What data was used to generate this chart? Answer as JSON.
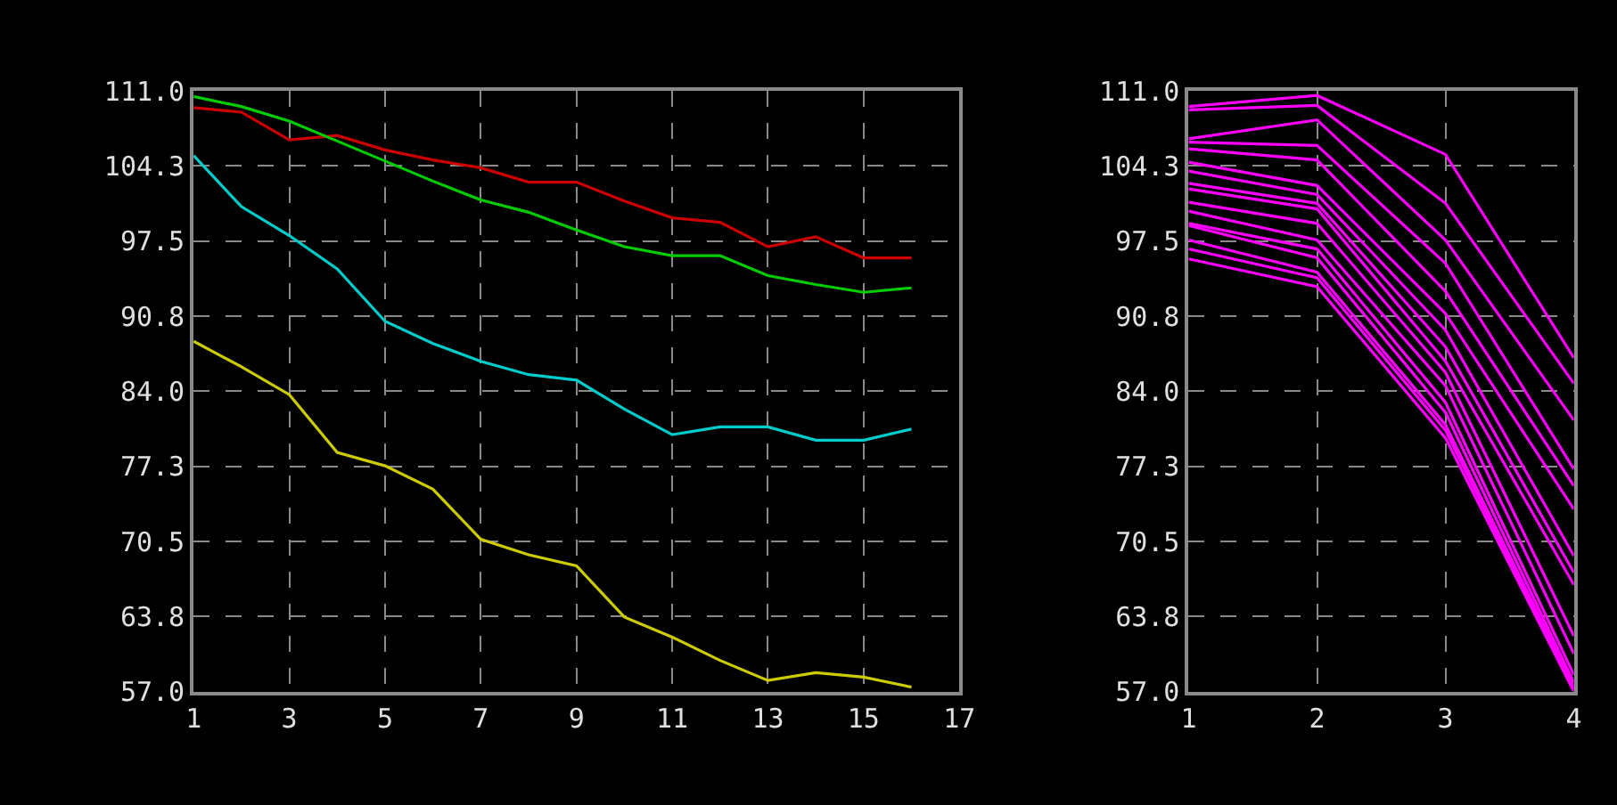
{
  "chart_data": [
    {
      "type": "line",
      "x": [
        1,
        2,
        3,
        4,
        5,
        6,
        7,
        8,
        9,
        10,
        11,
        12,
        13,
        14,
        15,
        16
      ],
      "xlim": [
        1,
        17
      ],
      "xticks": [
        1,
        3,
        5,
        7,
        9,
        11,
        13,
        15,
        17
      ],
      "ylim": [
        57,
        111
      ],
      "yticks": [
        {
          "value": 57,
          "label": "57.0"
        },
        {
          "value": 63.75,
          "label": "63.8"
        },
        {
          "value": 70.5,
          "label": "70.5"
        },
        {
          "value": 77.25,
          "label": "77.3"
        },
        {
          "value": 84,
          "label": "84.0"
        },
        {
          "value": 90.75,
          "label": "90.8"
        },
        {
          "value": 97.5,
          "label": "97.5"
        },
        {
          "value": 104.25,
          "label": "104.3"
        },
        {
          "value": 111,
          "label": "111.0"
        }
      ],
      "grid": true,
      "marker": "none",
      "line_style": "solid",
      "series": [
        {
          "color": "#cc0000",
          "values": [
            109.5,
            109.1,
            106.6,
            107.0,
            105.7,
            104.8,
            104.1,
            102.8,
            102.8,
            101.1,
            99.6,
            99.2,
            97.0,
            97.9,
            96.0,
            96.0
          ]
        },
        {
          "color": "#00cc00",
          "values": [
            110.5,
            109.6,
            108.3,
            106.5,
            104.7,
            102.9,
            101.2,
            100.1,
            98.5,
            97.0,
            96.2,
            96.2,
            94.4,
            93.6,
            92.9,
            93.3
          ]
        },
        {
          "color": "#00cccc",
          "values": [
            105.2,
            100.6,
            98.0,
            95.0,
            90.3,
            88.3,
            86.7,
            85.5,
            85.0,
            82.4,
            80.1,
            80.8,
            80.8,
            79.6,
            79.6,
            80.6
          ]
        },
        {
          "color": "#cccc00",
          "values": [
            88.5,
            86.2,
            83.7,
            78.5,
            77.3,
            75.2,
            70.7,
            69.3,
            68.3,
            63.7,
            61.9,
            59.8,
            58.0,
            58.7,
            58.3,
            57.4
          ]
        }
      ]
    },
    {
      "type": "line",
      "x": [
        1,
        2,
        3,
        4
      ],
      "xlim": [
        1,
        4
      ],
      "xticks": [
        1,
        2,
        3,
        4
      ],
      "ylim": [
        57,
        111
      ],
      "yticks": [
        {
          "value": 57,
          "label": "57.0"
        },
        {
          "value": 63.75,
          "label": "63.8"
        },
        {
          "value": 70.5,
          "label": "70.5"
        },
        {
          "value": 77.25,
          "label": "77.3"
        },
        {
          "value": 84,
          "label": "84.0"
        },
        {
          "value": 90.75,
          "label": "90.8"
        },
        {
          "value": 97.5,
          "label": "97.5"
        },
        {
          "value": 104.25,
          "label": "104.3"
        },
        {
          "value": 111,
          "label": "111.0"
        }
      ],
      "grid": true,
      "marker": "none",
      "line_style": "solid",
      "series": [
        {
          "color": "#ff00ff",
          "values": [
            109.6,
            110.6,
            105.3,
            87.0
          ]
        },
        {
          "color": "#ff00ff",
          "values": [
            109.3,
            109.7,
            100.9,
            84.7
          ]
        },
        {
          "color": "#ff00ff",
          "values": [
            106.7,
            108.4,
            97.6,
            81.4
          ]
        },
        {
          "color": "#ff00ff",
          "values": [
            106.4,
            106.1,
            95.5,
            77.0
          ]
        },
        {
          "color": "#ff00ff",
          "values": [
            105.8,
            104.8,
            93.0,
            75.5
          ]
        },
        {
          "color": "#ff00ff",
          "values": [
            104.6,
            102.5,
            91.0,
            73.4
          ]
        },
        {
          "color": "#ff00ff",
          "values": [
            103.8,
            101.7,
            89.5,
            69.2
          ]
        },
        {
          "color": "#ff00ff",
          "values": [
            102.7,
            100.9,
            88.0,
            67.7
          ]
        },
        {
          "color": "#ff00ff",
          "values": [
            102.2,
            100.4,
            86.7,
            66.6
          ]
        },
        {
          "color": "#ff00ff",
          "values": [
            101.0,
            99.1,
            85.7,
            62.0
          ]
        },
        {
          "color": "#ff00ff",
          "values": [
            100.2,
            97.6,
            84.5,
            60.4
          ]
        },
        {
          "color": "#ff00ff",
          "values": [
            99.1,
            96.8,
            83.0,
            58.5
          ]
        },
        {
          "color": "#ff00ff",
          "values": [
            98.9,
            96.0,
            82.1,
            57.8
          ]
        },
        {
          "color": "#ff00ff",
          "values": [
            97.6,
            94.7,
            81.0,
            57.4
          ]
        },
        {
          "color": "#ff00ff",
          "values": [
            96.8,
            94.2,
            80.5,
            57.2
          ]
        },
        {
          "color": "#ff00ff",
          "values": [
            95.9,
            93.4,
            79.8,
            57.0
          ]
        }
      ]
    }
  ]
}
